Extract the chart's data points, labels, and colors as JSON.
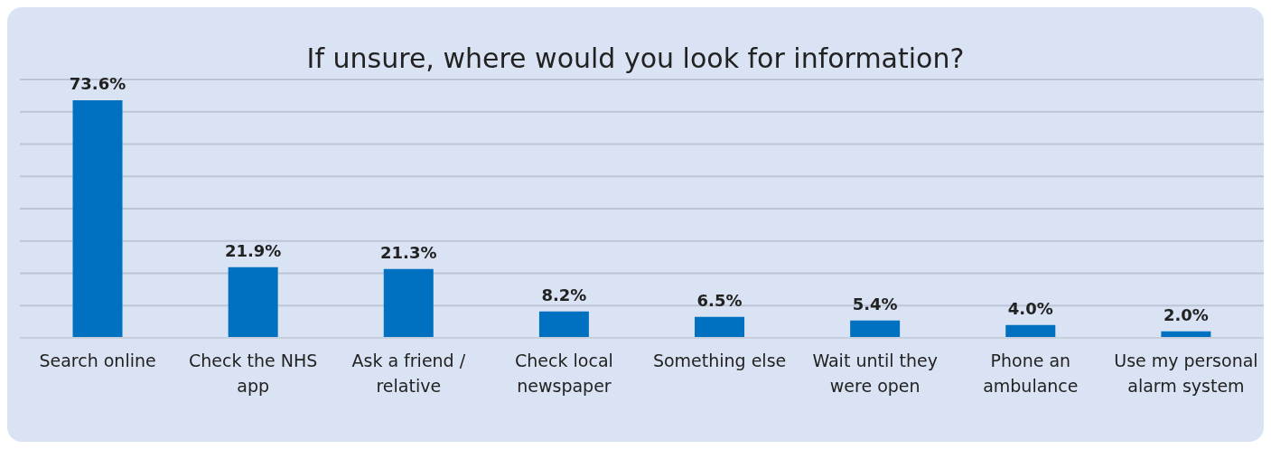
{
  "chart_data": {
    "type": "bar",
    "title": "If unsure, where would you look for information?",
    "categories": [
      "Search online",
      "Check the NHS app",
      "Ask a friend / relative",
      "Check local newspaper",
      "Something else",
      "Wait until they were open",
      "Phone an ambulance",
      "Use my personal alarm system"
    ],
    "values": [
      73.6,
      21.9,
      21.3,
      8.2,
      6.5,
      5.4,
      4.0,
      2.0
    ],
    "value_labels": [
      "73.6%",
      "21.9%",
      "21.3%",
      "8.2%",
      "6.5%",
      "5.4%",
      "4.0%",
      "2.0%"
    ],
    "color": "#0070c0",
    "ylim": [
      0,
      80
    ],
    "yticks": [
      {
        "value": 0,
        "label": null
      },
      {
        "value": 10,
        "label": null
      },
      {
        "value": 20,
        "label": null
      },
      {
        "value": 30,
        "label": null
      },
      {
        "value": 40,
        "label": null
      },
      {
        "value": 50,
        "label": null
      },
      {
        "value": 60,
        "label": null
      },
      {
        "value": 70,
        "label": null
      },
      {
        "value": 80,
        "label": null
      }
    ],
    "grid": "y",
    "tick_labels": "x",
    "legend": false
  }
}
